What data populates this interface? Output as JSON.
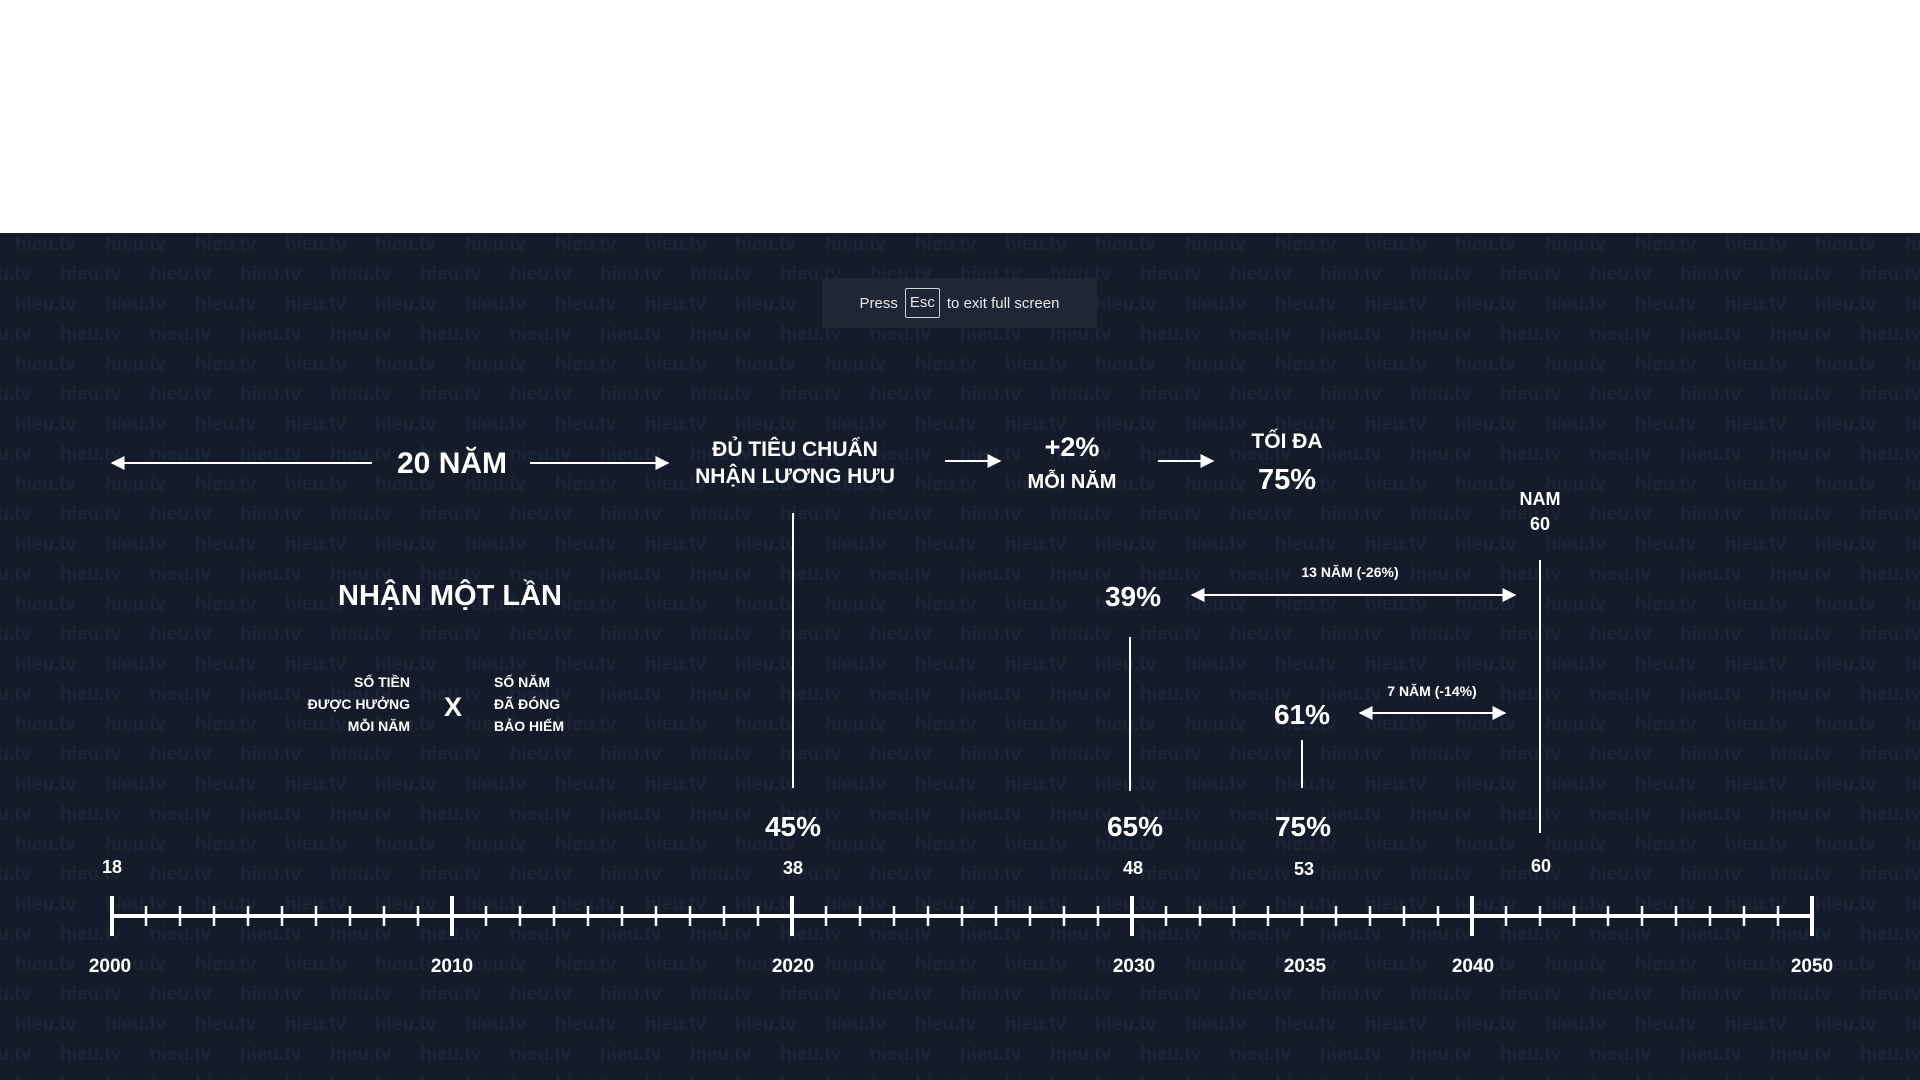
{
  "banner": {
    "press": "Press",
    "key": "Esc",
    "tail": "to exit full screen"
  },
  "watermark": "hieu.tv",
  "header": {
    "span_label": "20 NĂM",
    "eligible_line1": "ĐỦ TIÊU CHUẨN",
    "eligible_line2": "NHẬN LƯƠNG HƯU",
    "increase_value": "+2%",
    "increase_unit": "MỖI NĂM",
    "max_label": "TỐI ĐA",
    "max_value": "75%"
  },
  "lump_sum": {
    "title": "NHẬN MỘT LẦN",
    "left_line1": "SỐ TIỀN",
    "left_line2": "ĐƯỢC HƯỞNG",
    "left_line3": "MỖI NĂM",
    "operator": "X",
    "right_line1": "SỐ NĂM",
    "right_line2": "ĐÃ ĐÓNG",
    "right_line3": "BẢO HIỂM"
  },
  "markers": {
    "nam_label": "NAM",
    "nam_age": "60",
    "span13": "13 NĂM (-26%)",
    "span7": "7 NĂM (-14%)",
    "val39": "39%",
    "val61": "61%",
    "val45": "45%",
    "val65": "65%",
    "val75": "75%"
  },
  "ages": [
    "18",
    "38",
    "48",
    "53",
    "60"
  ],
  "years": [
    "2000",
    "2010",
    "2020",
    "2030",
    "2035",
    "2040",
    "2050"
  ],
  "axis": {
    "start_year": 2000,
    "end_year": 2050
  }
}
